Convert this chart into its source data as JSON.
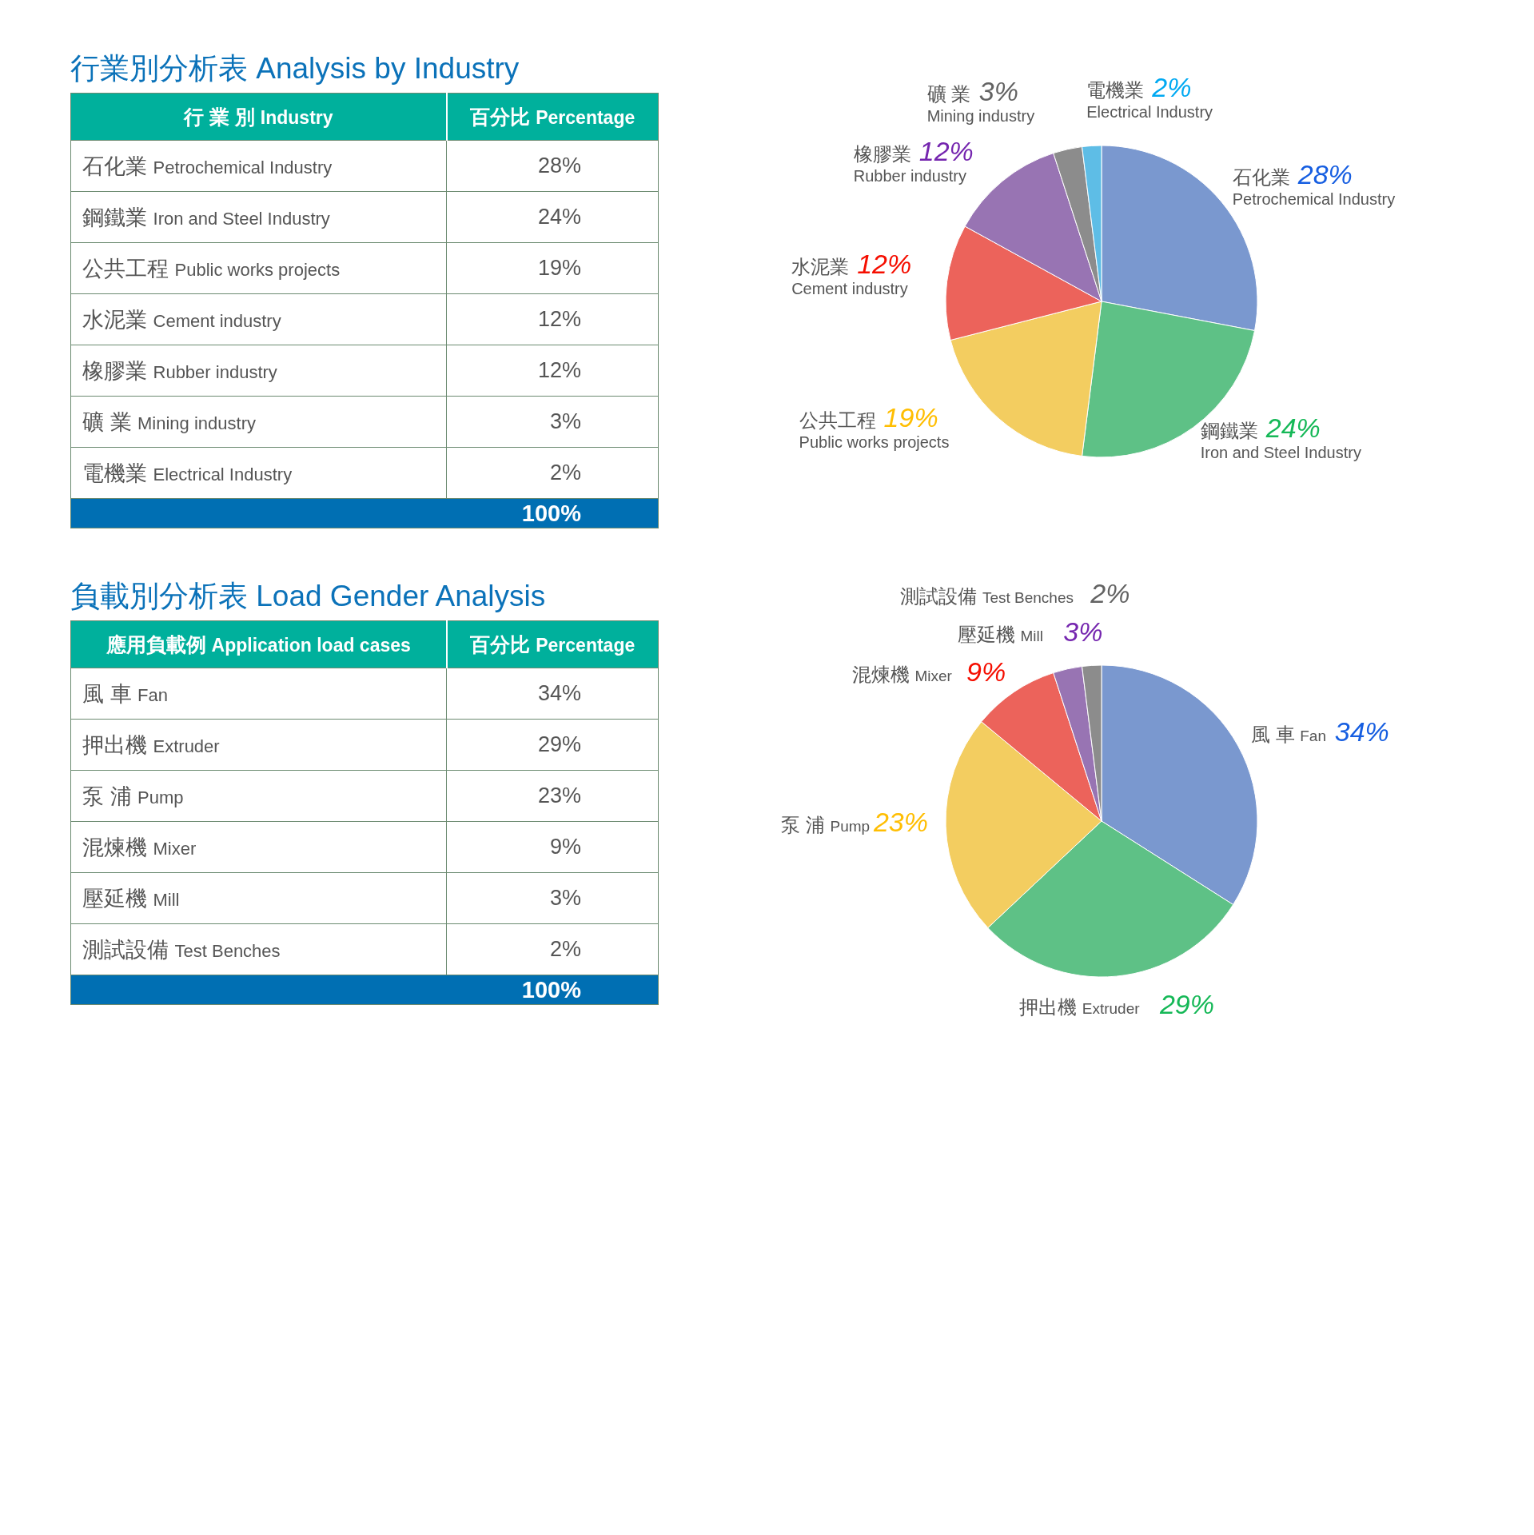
{
  "chart_data": [
    {
      "type": "pie",
      "title": "行業別分析表 Analysis by Industry",
      "categories": [
        "石化業\nPetrochemical Industry",
        "鋼鐵業\nIron and Steel Industry",
        "公共工程\nPublic works projects",
        "水泥業\nCement industry",
        "橡膠業\nRubber industry",
        "礦 業\nMining industry",
        "電機業\nElectrical Industry"
      ],
      "values": [
        28,
        24,
        19,
        12,
        12,
        3,
        2
      ],
      "value_labels": [
        "28%",
        "24%",
        "19%",
        "12%",
        "12%",
        "3%",
        "2%"
      ],
      "colors": [
        "#7a98cf",
        "#5ec186",
        "#f3cd60",
        "#ec635b",
        "#9874b3",
        "#8c8c8c",
        "#5ebde6"
      ],
      "annotations": [
        "行 業 別 Industry",
        "百分比 Percentage",
        "100%"
      ]
    },
    {
      "type": "pie",
      "title": "負載別分析表 Load Gender Analysis",
      "categories": [
        "風 車 Fan",
        "押出機 Extruder",
        "泵 浦 Pump",
        "混煉機 Mixer",
        "壓延機 Mill",
        "測試設備 Test Benches"
      ],
      "values": [
        34,
        29,
        23,
        9,
        3,
        2
      ],
      "value_labels": [
        "34%",
        "29%",
        "23%",
        "9%",
        "3%",
        "2%"
      ],
      "colors": [
        "#7a98cf",
        "#5ec186",
        "#f3cd60",
        "#ec635b",
        "#9874b3",
        "#8c8c8c"
      ],
      "annotations": [
        "應用負載例 Application load cases",
        "百分比 Percentage",
        "100%"
      ]
    }
  ]
}
